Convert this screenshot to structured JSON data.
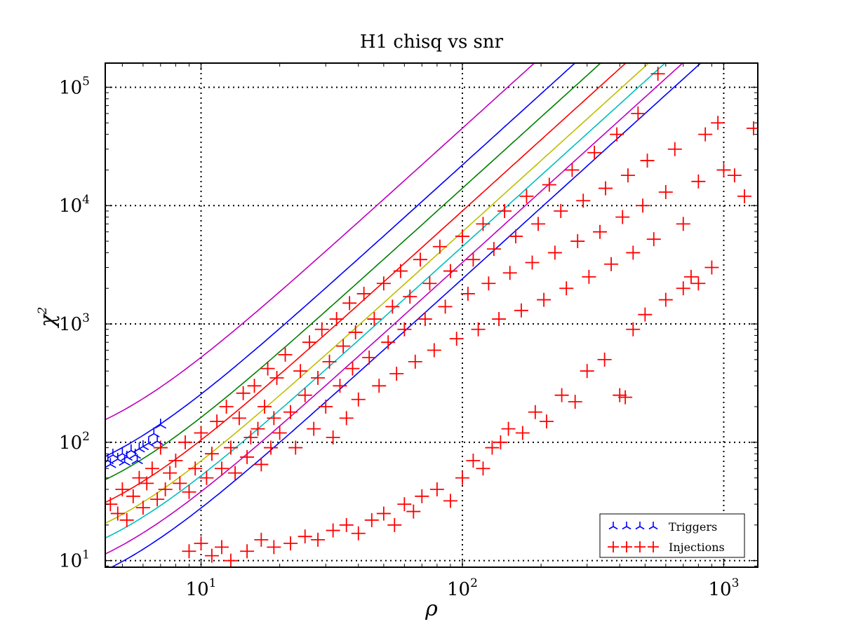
{
  "chart_data": {
    "type": "scatter",
    "title": "H1 chisq vs snr",
    "xlabel": "ρ",
    "ylabel": "χ",
    "ylabel_superscript": "2",
    "xscale": "log",
    "yscale": "log",
    "xlim": [
      4.3,
      1350
    ],
    "ylim": [
      8.8,
      160000
    ],
    "grid": true,
    "legend_position": "bottom-right",
    "x_ticks": [
      {
        "base": "10",
        "exp": "1",
        "value": 10
      },
      {
        "base": "10",
        "exp": "2",
        "value": 100
      },
      {
        "base": "10",
        "exp": "3",
        "value": 1000
      }
    ],
    "y_ticks": [
      {
        "base": "10",
        "exp": "1",
        "value": 10
      },
      {
        "base": "10",
        "exp": "2",
        "value": 100
      },
      {
        "base": "10",
        "exp": "3",
        "value": 1000
      },
      {
        "base": "10",
        "exp": "4",
        "value": 10000
      },
      {
        "base": "10",
        "exp": "5",
        "value": 100000
      }
    ],
    "series": [
      {
        "name": "Triggers",
        "color": "#0000ff",
        "marker": "tri_down",
        "points": [
          [
            4.4,
            70
          ],
          [
            4.6,
            78
          ],
          [
            4.8,
            72
          ],
          [
            5.0,
            80
          ],
          [
            5.2,
            75
          ],
          [
            5.4,
            85
          ],
          [
            5.6,
            78
          ],
          [
            5.8,
            88
          ],
          [
            6.0,
            92
          ],
          [
            6.3,
            98
          ],
          [
            6.6,
            118
          ],
          [
            6.8,
            102
          ],
          [
            7.0,
            140
          ],
          [
            4.5,
            65
          ],
          [
            5.1,
            68
          ],
          [
            5.7,
            70
          ]
        ]
      },
      {
        "name": "Injections",
        "color": "#ff0000",
        "marker": "plus",
        "points": [
          [
            4.5,
            30
          ],
          [
            4.8,
            25
          ],
          [
            5.0,
            40
          ],
          [
            5.2,
            22
          ],
          [
            5.5,
            35
          ],
          [
            5.8,
            50
          ],
          [
            6.0,
            28
          ],
          [
            6.2,
            45
          ],
          [
            6.5,
            60
          ],
          [
            6.8,
            33
          ],
          [
            7.0,
            90
          ],
          [
            7.3,
            40
          ],
          [
            7.6,
            55
          ],
          [
            8.0,
            70
          ],
          [
            8.3,
            45
          ],
          [
            8.7,
            100
          ],
          [
            9.0,
            38
          ],
          [
            9.5,
            60
          ],
          [
            10.0,
            120
          ],
          [
            10.5,
            50
          ],
          [
            11.0,
            80
          ],
          [
            11.5,
            150
          ],
          [
            12.0,
            60
          ],
          [
            12.5,
            200
          ],
          [
            13.0,
            90
          ],
          [
            13.5,
            55
          ],
          [
            14.0,
            160
          ],
          [
            14.5,
            260
          ],
          [
            15.0,
            75
          ],
          [
            15.5,
            110
          ],
          [
            16.0,
            300
          ],
          [
            16.5,
            130
          ],
          [
            17.0,
            65
          ],
          [
            17.5,
            200
          ],
          [
            18.0,
            420
          ],
          [
            18.5,
            90
          ],
          [
            19.0,
            160
          ],
          [
            19.5,
            350
          ],
          [
            20.0,
            120
          ],
          [
            21.0,
            550
          ],
          [
            22.0,
            180
          ],
          [
            23.0,
            90
          ],
          [
            24.0,
            400
          ],
          [
            25.0,
            250
          ],
          [
            26.0,
            700
          ],
          [
            27.0,
            130
          ],
          [
            28.0,
            350
          ],
          [
            29.0,
            900
          ],
          [
            30.0,
            200
          ],
          [
            31.0,
            480
          ],
          [
            32.0,
            110
          ],
          [
            33.0,
            1100
          ],
          [
            34.0,
            300
          ],
          [
            35.0,
            650
          ],
          [
            36.0,
            160
          ],
          [
            37.0,
            1500
          ],
          [
            38.0,
            420
          ],
          [
            39.0,
            850
          ],
          [
            40.0,
            230
          ],
          [
            42.0,
            1800
          ],
          [
            44.0,
            520
          ],
          [
            46.0,
            1100
          ],
          [
            48.0,
            300
          ],
          [
            50.0,
            2200
          ],
          [
            52.0,
            700
          ],
          [
            54.0,
            1400
          ],
          [
            56.0,
            380
          ],
          [
            58.0,
            2800
          ],
          [
            60.0,
            900
          ],
          [
            63.0,
            1700
          ],
          [
            66.0,
            480
          ],
          [
            69.0,
            3500
          ],
          [
            72.0,
            1100
          ],
          [
            75.0,
            2200
          ],
          [
            78.0,
            600
          ],
          [
            82.0,
            4500
          ],
          [
            86.0,
            1400
          ],
          [
            90.0,
            2800
          ],
          [
            95.0,
            750
          ],
          [
            100.0,
            5500
          ],
          [
            105.0,
            1800
          ],
          [
            110.0,
            3500
          ],
          [
            115.0,
            900
          ],
          [
            120.0,
            7000
          ],
          [
            126.0,
            2200
          ],
          [
            132.0,
            4300
          ],
          [
            138.0,
            1100
          ],
          [
            145.0,
            9000
          ],
          [
            152.0,
            2700
          ],
          [
            160.0,
            5500
          ],
          [
            168.0,
            1300
          ],
          [
            176.0,
            12000
          ],
          [
            185.0,
            3300
          ],
          [
            195.0,
            7000
          ],
          [
            205.0,
            1600
          ],
          [
            215.0,
            15000
          ],
          [
            226.0,
            4000
          ],
          [
            238.0,
            9000
          ],
          [
            250.0,
            2000
          ],
          [
            263.0,
            20000
          ],
          [
            276.0,
            5000
          ],
          [
            290.0,
            11000
          ],
          [
            305.0,
            2500
          ],
          [
            320.0,
            28000
          ],
          [
            336.0,
            6000
          ],
          [
            353.0,
            14000
          ],
          [
            371.0,
            3200
          ],
          [
            390.0,
            40000
          ],
          [
            410.0,
            8000
          ],
          [
            430.0,
            18000
          ],
          [
            450.0,
            4000
          ],
          [
            470.0,
            60000
          ],
          [
            490.0,
            10000
          ],
          [
            510.0,
            24000
          ],
          [
            540.0,
            5200
          ],
          [
            560.0,
            130000
          ],
          [
            600.0,
            13000
          ],
          [
            650.0,
            30000
          ],
          [
            700.0,
            7000
          ],
          [
            750.0,
            2500
          ],
          [
            800.0,
            16000
          ],
          [
            850.0,
            40000
          ],
          [
            900.0,
            3000
          ],
          [
            950.0,
            50000
          ],
          [
            1000.0,
            20000
          ],
          [
            1100.0,
            18000
          ],
          [
            1200.0,
            12000
          ],
          [
            1300.0,
            45000
          ],
          [
            9.0,
            12
          ],
          [
            10.0,
            14
          ],
          [
            11.0,
            11
          ],
          [
            12.0,
            13
          ],
          [
            13.0,
            10
          ],
          [
            15.0,
            12
          ],
          [
            17.0,
            15
          ],
          [
            19.0,
            13
          ],
          [
            22.0,
            14
          ],
          [
            25.0,
            16
          ],
          [
            28.0,
            15
          ],
          [
            32.0,
            18
          ],
          [
            36.0,
            20
          ],
          [
            40.0,
            17
          ],
          [
            45.0,
            22
          ],
          [
            50.0,
            25
          ],
          [
            55.0,
            20
          ],
          [
            60.0,
            30
          ],
          [
            65.0,
            26
          ],
          [
            70.0,
            35
          ],
          [
            80.0,
            40
          ],
          [
            90.0,
            32
          ],
          [
            100.0,
            50
          ],
          [
            110.0,
            70
          ],
          [
            120.0,
            60
          ],
          [
            130.0,
            90
          ],
          [
            140.0,
            100
          ],
          [
            150.0,
            130
          ],
          [
            170.0,
            120
          ],
          [
            190.0,
            180
          ],
          [
            210.0,
            150
          ],
          [
            240.0,
            250
          ],
          [
            270.0,
            220
          ],
          [
            300.0,
            400
          ],
          [
            350.0,
            500
          ],
          [
            400.0,
            250
          ],
          [
            420.0,
            240
          ],
          [
            450.0,
            900
          ],
          [
            500.0,
            1200
          ],
          [
            600.0,
            1600
          ],
          [
            700.0,
            2000
          ],
          [
            800.0,
            2200
          ]
        ]
      }
    ],
    "reference_curves": [
      {
        "color": "#bf00bf",
        "coef": 4.5
      },
      {
        "color": "#0000ff",
        "coef": 2.2
      },
      {
        "color": "#008000",
        "coef": 1.4
      },
      {
        "color": "#ff0000",
        "coef": 0.9
      },
      {
        "color": "#bfbf00",
        "coef": 0.6
      },
      {
        "color": "#00bfbf",
        "coef": 0.45
      },
      {
        "color": "#bf00bf",
        "coef": 0.33
      },
      {
        "color": "#0000ff",
        "coef": 0.24
      }
    ]
  }
}
